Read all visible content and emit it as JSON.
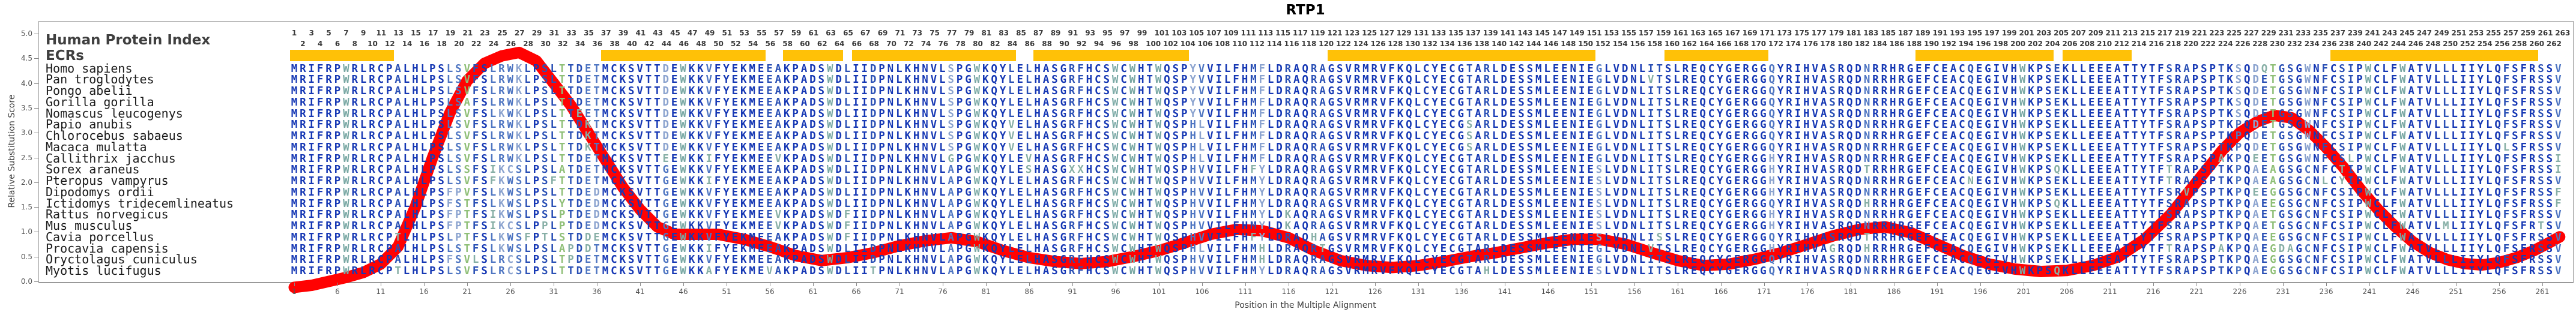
{
  "title": "RTP1",
  "axes": {
    "y_label": "Relative Substitution Score",
    "x_label": "Position in the Multiple Alignment",
    "y_tick_labels": [
      "0.0",
      "0.5",
      "1.0",
      "1.5",
      "2.0",
      "2.5",
      "3.0",
      "3.5",
      "4.0",
      "4.5",
      "5.0"
    ],
    "y_min": 0.0,
    "y_max": 5.0,
    "x_tick_start": 1,
    "x_tick_step": 5,
    "x_tick_end": 261
  },
  "left_panel": {
    "header_label": "Human Protein Index",
    "ecrs_label": "ECRs"
  },
  "alignment": {
    "num_columns": 263,
    "base_sequence": "MRIFRPWRLRCPALHLPSLSVFSLRWKLPSLTTDETMCKSVTTDEWKKVFYEKMEEAKPADSWDLIIDPNLKHNVLSPGWKQYLELHASGRFHCSWCWHTWQSPYVVILFHMFLDRAQRAGSVRMRVFKQLCYECGTARLDESSMLEENIEGLVDNLITSLREQCYGERGGQYRIHVASRQDNRRHRGEFCEACQEGIVHWKPSEKLLEEEATTYTFSRAPSPTKSQDQTGSGWNFCSIPWCLFWATVLLLIIYLQFSFRSSV",
    "species": [
      {
        "name": "Homo sapiens",
        "variants": {}
      },
      {
        "name": "Pan troglodytes",
        "variants": {
          "158": "V",
          "229": "E"
        }
      },
      {
        "name": "Pongo abelii",
        "variants": {
          "229": "E"
        }
      },
      {
        "name": "Gorilla gorilla",
        "variants": {
          "21": "A",
          "229": "E"
        }
      },
      {
        "name": "Nomascus leucogenys",
        "variants": {
          "25": "K",
          "34": "E",
          "229": "E"
        }
      },
      {
        "name": "Papio anubis",
        "variants": {
          "35": "K",
          "84": "V",
          "105": "H",
          "106": "L",
          "137": "S",
          "226": "P",
          "229": "E"
        }
      },
      {
        "name": "Chlorocebus sabaeus",
        "variants": {
          "35": "K",
          "84": "V",
          "105": "H",
          "106": "L",
          "137": "S",
          "226": "P",
          "229": "E"
        }
      },
      {
        "name": "Macaca mulatta",
        "variants": {
          "35": "K",
          "84": "V",
          "105": "H",
          "106": "L",
          "137": "S",
          "226": "P",
          "229": "E",
          "257": "L"
        }
      },
      {
        "name": "Callithrix jacchus",
        "variants": {
          "44": "E",
          "49": "I",
          "57": "V",
          "77": "G",
          "86": "V",
          "105": "H",
          "106": "L",
          "172": "H",
          "224": "A",
          "226": "P",
          "228": "E",
          "229": "E",
          "239": "L",
          "263": "I"
        }
      },
      {
        "name": "Sorex araneus",
        "variants": {
          "21": "S",
          "24": "I",
          "25": "K",
          "26": "C",
          "27": "S",
          "32": "A",
          "44": "G",
          "77": "A",
          "86": "S",
          "91": "X",
          "92": "X",
          "105": "H",
          "112": "F",
          "113": "Y",
          "152": "S",
          "172": "H",
          "183": "T",
          "205": "Q",
          "218": "T",
          "226": "P",
          "228": "A",
          "229": "E",
          "230": "A",
          "234": "C",
          "238": "T",
          "263": "I"
        }
      },
      {
        "name": "Pteropus vampyrus",
        "variants": {
          "24": "F",
          "25": "K",
          "27": "S",
          "31": "F",
          "44": "G",
          "49": "I",
          "77": "A",
          "105": "H",
          "113": "Y",
          "152": "S",
          "172": "H",
          "195": "N",
          "218": "T",
          "226": "P",
          "228": "A",
          "229": "E",
          "230": "A",
          "234": "C",
          "236": "L",
          "238": "Y"
        }
      },
      {
        "name": "Dipodomys ordii",
        "variants": {
          "19": "F",
          "20": "P",
          "25": "K",
          "27": "S",
          "36": "D",
          "44": "G",
          "77": "A",
          "105": "H",
          "113": "Y",
          "152": "S",
          "172": "H",
          "220": "V",
          "226": "P",
          "228": "E",
          "229": "E",
          "230": "G",
          "234": "C",
          "263": "F"
        }
      },
      {
        "name": "Ictidomys tridecemlineatus",
        "variants": {
          "19": "F",
          "21": "T",
          "25": "K",
          "27": "S",
          "32": "Y",
          "36": "D",
          "44": "G",
          "77": "A",
          "105": "H",
          "113": "Y",
          "152": "S",
          "183": "H",
          "205": "Q",
          "226": "P",
          "228": "A",
          "229": "E",
          "230": "E",
          "234": "C",
          "263": "F"
        }
      },
      {
        "name": "Rattus norvegicus",
        "variants": {
          "19": "F",
          "20": "P",
          "21": "T",
          "24": "I",
          "25": "K",
          "27": "S",
          "32": "P",
          "36": "D",
          "44": "G",
          "57": "V",
          "65": "F",
          "77": "A",
          "105": "H",
          "113": "Y",
          "116": "K",
          "152": "S",
          "172": "H",
          "226": "P",
          "228": "A",
          "229": "E",
          "234": "C"
        }
      },
      {
        "name": "Mus musculus",
        "variants": {
          "19": "F",
          "20": "P",
          "21": "T",
          "24": "I",
          "25": "K",
          "26": "C",
          "27": "S",
          "30": "P",
          "32": "P",
          "36": "D",
          "44": "G",
          "57": "V",
          "65": "F",
          "77": "A",
          "105": "H",
          "113": "Y",
          "116": "K",
          "152": "S",
          "172": "H",
          "226": "P",
          "228": "A",
          "229": "E",
          "234": "C",
          "250": "M",
          "261": "T"
        }
      },
      {
        "name": "Cavia porcellus",
        "variants": {
          "13": "T",
          "20": "P",
          "21": "T",
          "25": "K",
          "27": "S",
          "28": "F",
          "30": "T",
          "32": "S",
          "35": "D",
          "36": "E",
          "44": "G",
          "65": "F",
          "77": "A",
          "105": "H",
          "112": "F",
          "113": "Y",
          "119": "H",
          "152": "S",
          "159": "S",
          "183": "T",
          "226": "P",
          "228": "A",
          "229": "E",
          "230": "E",
          "234": "C"
        }
      },
      {
        "name": "Procavia capensis",
        "variants": {
          "21": "T",
          "25": "K",
          "27": "S",
          "32": "A",
          "33": "P",
          "35": "D",
          "44": "G",
          "49": "I",
          "77": "A",
          "105": "H",
          "106": "L",
          "113": "H",
          "120": "T",
          "158": "V",
          "172": "H",
          "179": "G",
          "183": "H",
          "218": "T",
          "224": "A",
          "226": "P",
          "228": "A",
          "229": "E",
          "230": "G",
          "231": "D",
          "232": "A",
          "234": "C"
        }
      },
      {
        "name": "Oryctolagus cuniculus",
        "variants": {
          "19": "F",
          "22": "L",
          "26": "C",
          "27": "S",
          "33": "P",
          "44": "G",
          "77": "A",
          "105": "H",
          "113": "H",
          "226": "P",
          "228": "A",
          "229": "E",
          "230": "G",
          "234": "C"
        }
      },
      {
        "name": "Myotis lucifugus",
        "variants": {
          "13": "T",
          "26": "C",
          "27": "S",
          "44": "G",
          "49": "A",
          "56": "V",
          "68": "T",
          "77": "A",
          "105": "H",
          "113": "Y",
          "139": "H",
          "152": "S",
          "205": "Q",
          "226": "P",
          "228": "A",
          "229": "E",
          "230": "G",
          "234": "C"
        }
      }
    ]
  },
  "ecr_regions": {
    "color": "#FFC107",
    "ranges": [
      [
        1,
        12
      ],
      [
        37,
        55
      ],
      [
        58,
        64
      ],
      [
        66,
        84
      ],
      [
        87,
        104
      ],
      [
        121,
        151
      ],
      [
        160,
        171
      ],
      [
        189,
        204
      ],
      [
        206,
        213
      ],
      [
        237,
        260
      ]
    ]
  },
  "chart_data": {
    "type": "line",
    "title": "RTP1",
    "xlabel": "Position in the Multiple Alignment",
    "ylabel": "Relative Substitution Score",
    "ylim": [
      0,
      5
    ],
    "xlim": [
      1,
      263
    ],
    "grid": false,
    "legend": "none",
    "series": [
      {
        "name": "Relative Substitution Score",
        "color": "#FF0202",
        "points": [
          [
            1,
            -0.12
          ],
          [
            3,
            -0.08
          ],
          [
            5,
            0.0
          ],
          [
            7,
            0.08
          ],
          [
            9,
            0.18
          ],
          [
            11,
            0.35
          ],
          [
            13,
            0.7
          ],
          [
            15,
            1.5
          ],
          [
            17,
            2.5
          ],
          [
            19,
            3.4
          ],
          [
            21,
            4.05
          ],
          [
            23,
            4.4
          ],
          [
            25,
            4.55
          ],
          [
            27,
            4.62
          ],
          [
            29,
            4.45
          ],
          [
            31,
            4.0
          ],
          [
            33,
            3.55
          ],
          [
            35,
            3.0
          ],
          [
            37,
            2.45
          ],
          [
            39,
            1.9
          ],
          [
            41,
            1.45
          ],
          [
            43,
            1.1
          ],
          [
            45,
            0.95
          ],
          [
            47,
            0.95
          ],
          [
            50,
            0.95
          ],
          [
            53,
            0.85
          ],
          [
            56,
            0.7
          ],
          [
            59,
            0.52
          ],
          [
            62,
            0.42
          ],
          [
            65,
            0.48
          ],
          [
            68,
            0.58
          ],
          [
            71,
            0.72
          ],
          [
            74,
            0.82
          ],
          [
            77,
            0.88
          ],
          [
            80,
            0.8
          ],
          [
            83,
            0.62
          ],
          [
            86,
            0.48
          ],
          [
            89,
            0.4
          ],
          [
            92,
            0.36
          ],
          [
            95,
            0.4
          ],
          [
            98,
            0.5
          ],
          [
            101,
            0.62
          ],
          [
            104,
            0.78
          ],
          [
            107,
            0.95
          ],
          [
            110,
            1.05
          ],
          [
            113,
            1.02
          ],
          [
            116,
            0.88
          ],
          [
            119,
            0.62
          ],
          [
            122,
            0.42
          ],
          [
            125,
            0.32
          ],
          [
            128,
            0.28
          ],
          [
            131,
            0.32
          ],
          [
            134,
            0.4
          ],
          [
            137,
            0.5
          ],
          [
            140,
            0.58
          ],
          [
            143,
            0.68
          ],
          [
            146,
            0.78
          ],
          [
            149,
            0.85
          ],
          [
            152,
            0.85
          ],
          [
            155,
            0.75
          ],
          [
            158,
            0.58
          ],
          [
            161,
            0.42
          ],
          [
            164,
            0.32
          ],
          [
            167,
            0.35
          ],
          [
            170,
            0.45
          ],
          [
            173,
            0.58
          ],
          [
            176,
            0.75
          ],
          [
            179,
            0.92
          ],
          [
            182,
            1.05
          ],
          [
            185,
            1.1
          ],
          [
            188,
            0.98
          ],
          [
            191,
            0.75
          ],
          [
            194,
            0.52
          ],
          [
            197,
            0.35
          ],
          [
            200,
            0.25
          ],
          [
            203,
            0.2
          ],
          [
            206,
            0.22
          ],
          [
            209,
            0.32
          ],
          [
            212,
            0.5
          ],
          [
            215,
            0.85
          ],
          [
            218,
            1.35
          ],
          [
            221,
            2.0
          ],
          [
            224,
            2.65
          ],
          [
            226,
            3.0
          ],
          [
            228,
            3.22
          ],
          [
            230,
            3.35
          ],
          [
            232,
            3.3
          ],
          [
            234,
            3.05
          ],
          [
            236,
            2.7
          ],
          [
            238,
            2.3
          ],
          [
            240,
            1.85
          ],
          [
            242,
            1.45
          ],
          [
            244,
            1.1
          ],
          [
            246,
            0.8
          ],
          [
            248,
            0.58
          ],
          [
            250,
            0.44
          ],
          [
            252,
            0.36
          ],
          [
            254,
            0.33
          ],
          [
            256,
            0.38
          ],
          [
            258,
            0.48
          ],
          [
            260,
            0.62
          ],
          [
            262,
            0.8
          ],
          [
            263,
            0.9
          ]
        ]
      }
    ]
  },
  "colors": {
    "curve_red": "#FF0202",
    "ecr_yellow": "#FFC107",
    "letter_conserved": "#1638B4",
    "letter_strong": "#2a50b5",
    "letter_medium": "#4f76c2",
    "letter_weak": "#8ba3cf",
    "letter_rare": "#87afa6",
    "letter_variable_green": "#8fbf77",
    "letter_tryptophan_teal": "#79a8a4",
    "axis_gray": "#999999",
    "label_gray": "#3c3c3c"
  }
}
